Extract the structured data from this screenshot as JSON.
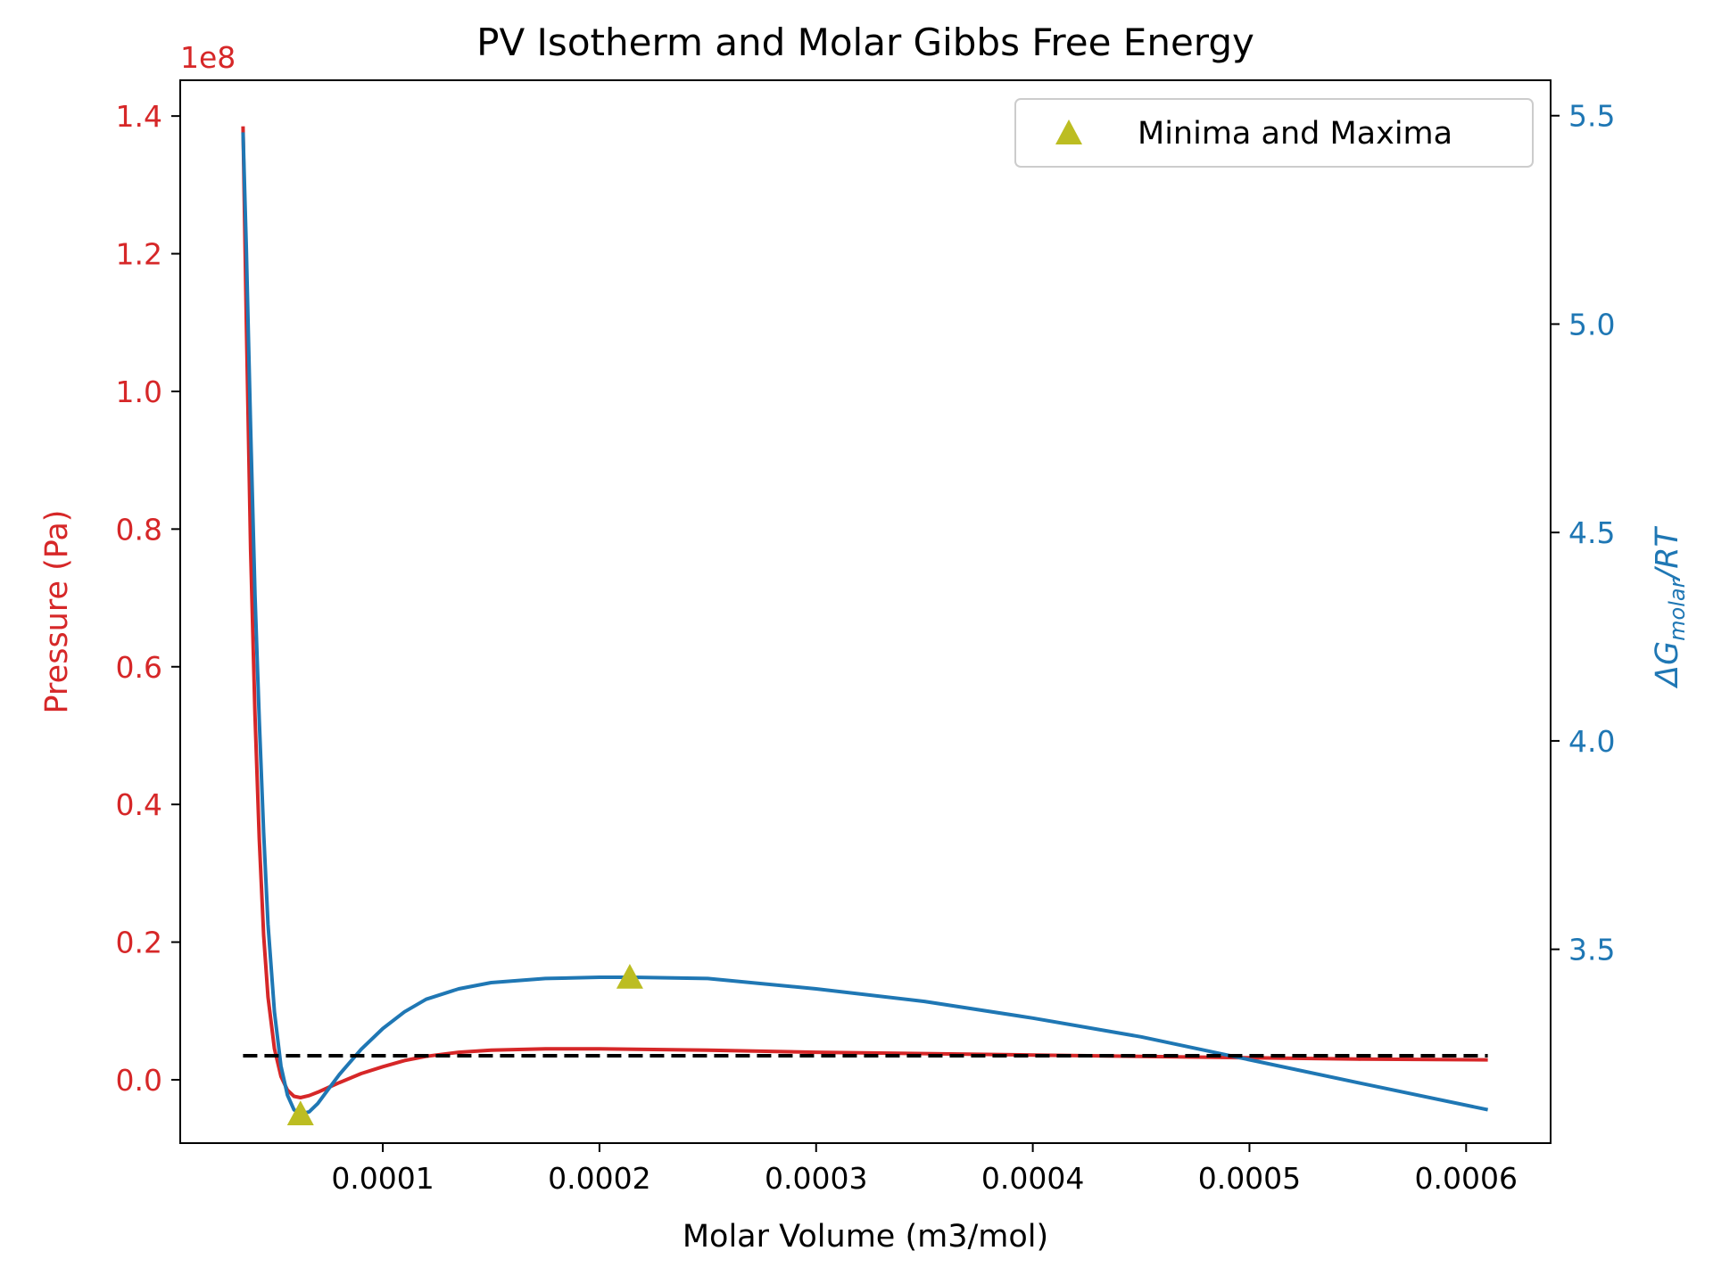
{
  "chart_data": {
    "type": "line",
    "title": "PV Isotherm and Molar Gibbs Free Energy",
    "xlabel": "Molar Volume (m3/mol)",
    "xlim": [
      6.5e-06,
      0.000639
    ],
    "x_ticks": [
      {
        "value": 0.0001,
        "label": "0.0001"
      },
      {
        "value": 0.0002,
        "label": "0.0002"
      },
      {
        "value": 0.0003,
        "label": "0.0003"
      },
      {
        "value": 0.0004,
        "label": "0.0004"
      },
      {
        "value": 0.0005,
        "label": "0.0005"
      },
      {
        "value": 0.0006,
        "label": "0.0006"
      }
    ],
    "y_left": {
      "label": "Pressure (Pa)",
      "offset_text": "1e8",
      "color": "#d62728",
      "ylim": [
        -0.092,
        1.452
      ],
      "ticks": [
        {
          "value": 0.0,
          "label": "0.0"
        },
        {
          "value": 0.2,
          "label": "0.2"
        },
        {
          "value": 0.4,
          "label": "0.4"
        },
        {
          "value": 0.6,
          "label": "0.6"
        },
        {
          "value": 0.8,
          "label": "0.8"
        },
        {
          "value": 1.0,
          "label": "1.0"
        },
        {
          "value": 1.2,
          "label": "1.2"
        },
        {
          "value": 1.4,
          "label": "1.4"
        }
      ]
    },
    "y_right": {
      "label_main": "ΔG",
      "label_sub": "molar",
      "label_tail": "/RT",
      "color": "#1f77b4",
      "ylim": [
        3.035,
        5.585
      ],
      "ticks": [
        {
          "value": 3.5,
          "label": "3.5"
        },
        {
          "value": 4.0,
          "label": "4.0"
        },
        {
          "value": 4.5,
          "label": "4.5"
        },
        {
          "value": 5.0,
          "label": "5.0"
        },
        {
          "value": 5.5,
          "label": "5.5"
        }
      ]
    },
    "series": [
      {
        "color": "#d62728",
        "axis": "left",
        "x": [
          3.55e-05,
          3.7e-05,
          3.9e-05,
          4.1e-05,
          4.3e-05,
          4.5e-05,
          4.7e-05,
          5e-05,
          5.3e-05,
          5.6e-05,
          5.9e-05,
          6.2e-05,
          6.6e-05,
          7e-05,
          7.5e-05,
          8e-05,
          9e-05,
          0.0001,
          0.00011,
          0.00012,
          0.000135,
          0.00015,
          0.000175,
          0.0002,
          0.00025,
          0.0003,
          0.00035,
          0.0004,
          0.00045,
          0.0005,
          0.00055,
          0.00061
        ],
        "values": [
          1.385,
          1.1,
          0.77,
          0.53,
          0.35,
          0.21,
          0.12,
          0.045,
          0.005,
          -0.015,
          -0.024,
          -0.026,
          -0.023,
          -0.018,
          -0.011,
          -0.004,
          0.009,
          0.019,
          0.028,
          0.034,
          0.04,
          0.043,
          0.045,
          0.045,
          0.043,
          0.04,
          0.038,
          0.036,
          0.034,
          0.032,
          0.03,
          0.029
        ]
      },
      {
        "color": "#1f77b4",
        "axis": "right",
        "x": [
          3.55e-05,
          3.7e-05,
          3.9e-05,
          4.1e-05,
          4.3e-05,
          4.5e-05,
          4.7e-05,
          5e-05,
          5.3e-05,
          5.6e-05,
          5.9e-05,
          6.2e-05,
          6.6e-05,
          7e-05,
          7.5e-05,
          8e-05,
          9e-05,
          0.0001,
          0.00011,
          0.00012,
          0.000135,
          0.00015,
          0.000175,
          0.0002,
          0.000215,
          0.00025,
          0.0003,
          0.00035,
          0.0004,
          0.00045,
          0.0005,
          0.00055,
          0.00061
        ],
        "values": [
          5.46,
          5.18,
          4.75,
          4.35,
          4.05,
          3.78,
          3.56,
          3.35,
          3.22,
          3.15,
          3.115,
          3.105,
          3.11,
          3.13,
          3.165,
          3.2,
          3.26,
          3.31,
          3.35,
          3.38,
          3.405,
          3.42,
          3.43,
          3.433,
          3.433,
          3.43,
          3.405,
          3.375,
          3.335,
          3.29,
          3.235,
          3.18,
          3.115
        ]
      }
    ],
    "reference_line": {
      "axis": "left",
      "y": 0.035,
      "x_start": 3.55e-05,
      "x_end": 0.00061,
      "style": "dashed",
      "color": "#000000"
    },
    "markers": {
      "name": "Minima and Maxima",
      "color": "#bcbd22",
      "shape": "triangle-up",
      "axis": "right",
      "points": [
        {
          "x": 6.2e-05,
          "y": 3.105
        },
        {
          "x": 0.000214,
          "y": 3.433
        }
      ]
    },
    "legend": {
      "position": "top-right"
    },
    "grid": false
  }
}
